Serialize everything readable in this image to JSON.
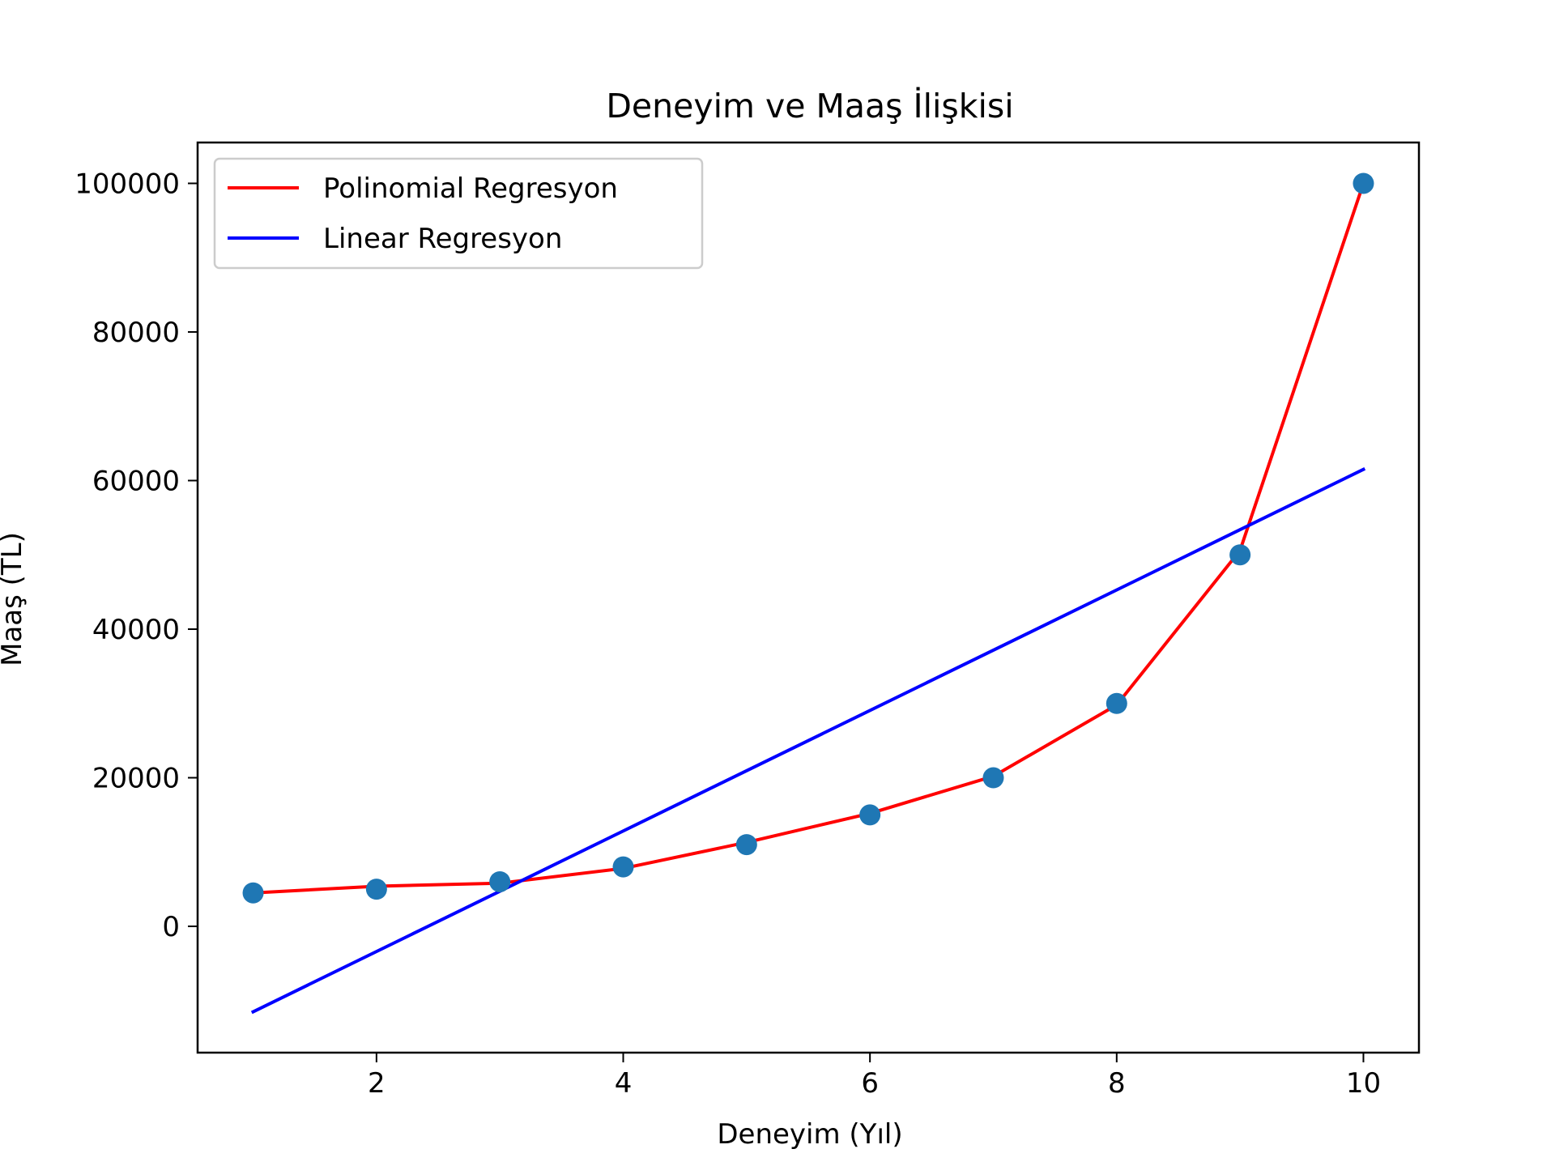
{
  "chart_data": {
    "type": "line",
    "title": "Deneyim ve Maaş İlişkisi",
    "xlabel": "Deneyim (Yıl)",
    "ylabel": "Maaş (TL)",
    "xlim": [
      0.55,
      10.45
    ],
    "ylim": [
      -17000,
      105500
    ],
    "xticks": [
      2,
      4,
      6,
      8,
      10
    ],
    "yticks": [
      0,
      20000,
      40000,
      60000,
      80000,
      100000
    ],
    "grid": false,
    "legend_position": "upper-left",
    "scatter": {
      "color": "#1f77b4",
      "x": [
        1,
        2,
        3,
        4,
        5,
        6,
        7,
        8,
        9,
        10
      ],
      "y": [
        4500,
        5000,
        6000,
        8000,
        11000,
        15000,
        20000,
        30000,
        50000,
        100000
      ]
    },
    "series": [
      {
        "name": "Polinomial Regresyon",
        "color": "#ff0000",
        "x": [
          1,
          2,
          3,
          4,
          5,
          6,
          7,
          8,
          9,
          10
        ],
        "y": [
          4500,
          5400,
          5800,
          7800,
          11300,
          15200,
          20200,
          29800,
          50600,
          100000
        ]
      },
      {
        "name": "Linear Regresyon",
        "color": "#0000ff",
        "x": [
          1,
          10
        ],
        "y": [
          -11500,
          61500
        ]
      }
    ]
  }
}
